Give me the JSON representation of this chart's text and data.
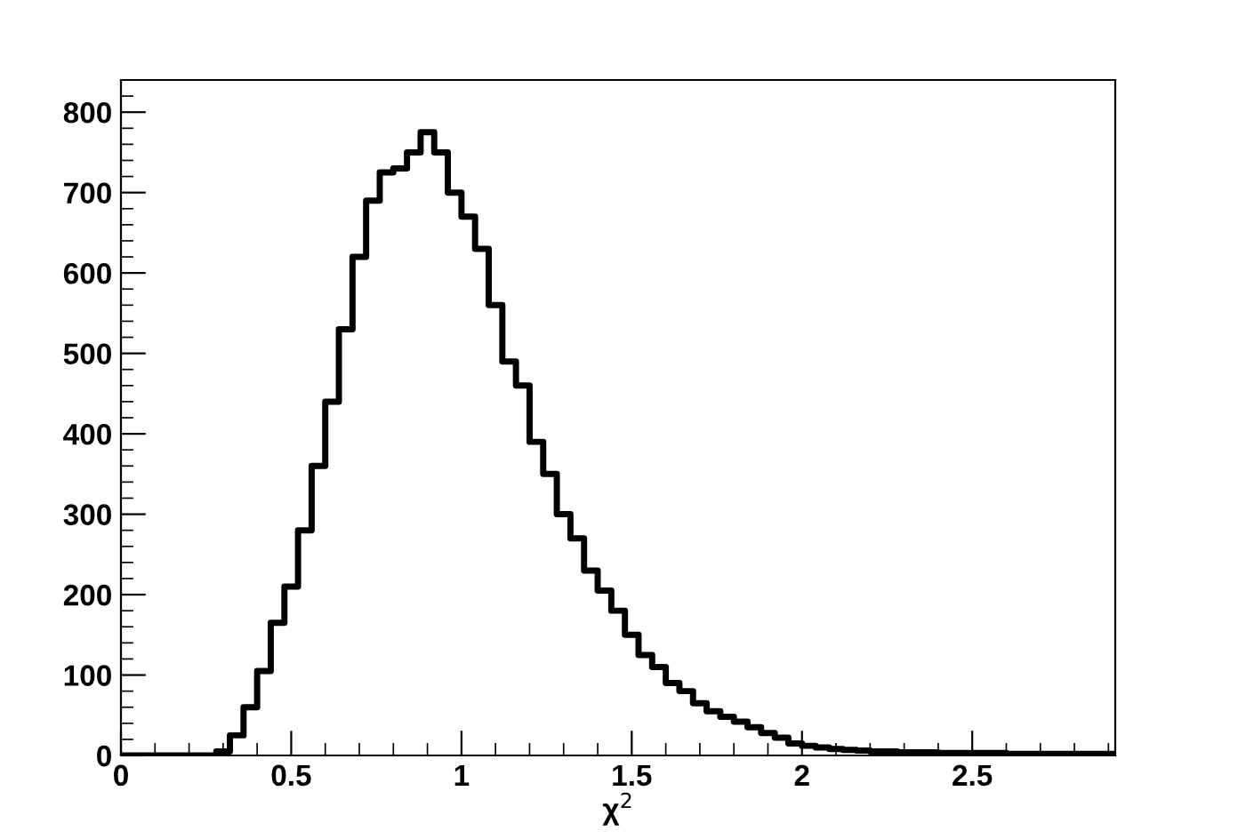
{
  "chart_data": {
    "type": "histogram",
    "xlabel": "χ$^{2}$",
    "color": "#000000",
    "bins": [
      0,
      0.04,
      0.08,
      0.12,
      0.16,
      0.2,
      0.24,
      0.28,
      0.32,
      0.36,
      0.4,
      0.44,
      0.48,
      0.52,
      0.56,
      0.6,
      0.64,
      0.68,
      0.72,
      0.76,
      0.8,
      0.84,
      0.88,
      0.92,
      0.96,
      1.0,
      1.04,
      1.08,
      1.12,
      1.16,
      1.2,
      1.24,
      1.28,
      1.32,
      1.36,
      1.4,
      1.44,
      1.48,
      1.52,
      1.56,
      1.6,
      1.64,
      1.68,
      1.72,
      1.76,
      1.8,
      1.84,
      1.88,
      1.92,
      1.96,
      2.0,
      2.04,
      2.08,
      2.12,
      2.16,
      2.2,
      2.24,
      2.28,
      2.32,
      2.36,
      2.4,
      2.44,
      2.48,
      2.52,
      2.56,
      2.6,
      2.64,
      2.68,
      2.72,
      2.76,
      2.8,
      2.84,
      2.88,
      2.92
    ],
    "values": [
      0,
      0,
      0,
      0,
      0,
      0,
      0,
      5,
      25,
      60,
      105,
      165,
      210,
      280,
      360,
      440,
      530,
      620,
      690,
      725,
      730,
      750,
      775,
      750,
      700,
      670,
      630,
      560,
      490,
      460,
      390,
      350,
      300,
      270,
      230,
      205,
      180,
      150,
      125,
      110,
      90,
      80,
      65,
      55,
      48,
      42,
      35,
      28,
      22,
      15,
      12,
      10,
      8,
      7,
      6,
      5,
      5,
      4,
      4,
      4,
      3,
      3,
      3,
      3,
      3,
      2,
      2,
      2,
      2,
      2,
      2,
      2,
      2
    ],
    "xlim": [
      0,
      2.92
    ],
    "ylim": [
      0,
      840
    ],
    "xticks": [
      0,
      0.5,
      1,
      1.5,
      2,
      2.5
    ],
    "yticks": [
      0,
      100,
      200,
      300,
      400,
      500,
      600,
      700,
      800
    ],
    "grid": false
  }
}
